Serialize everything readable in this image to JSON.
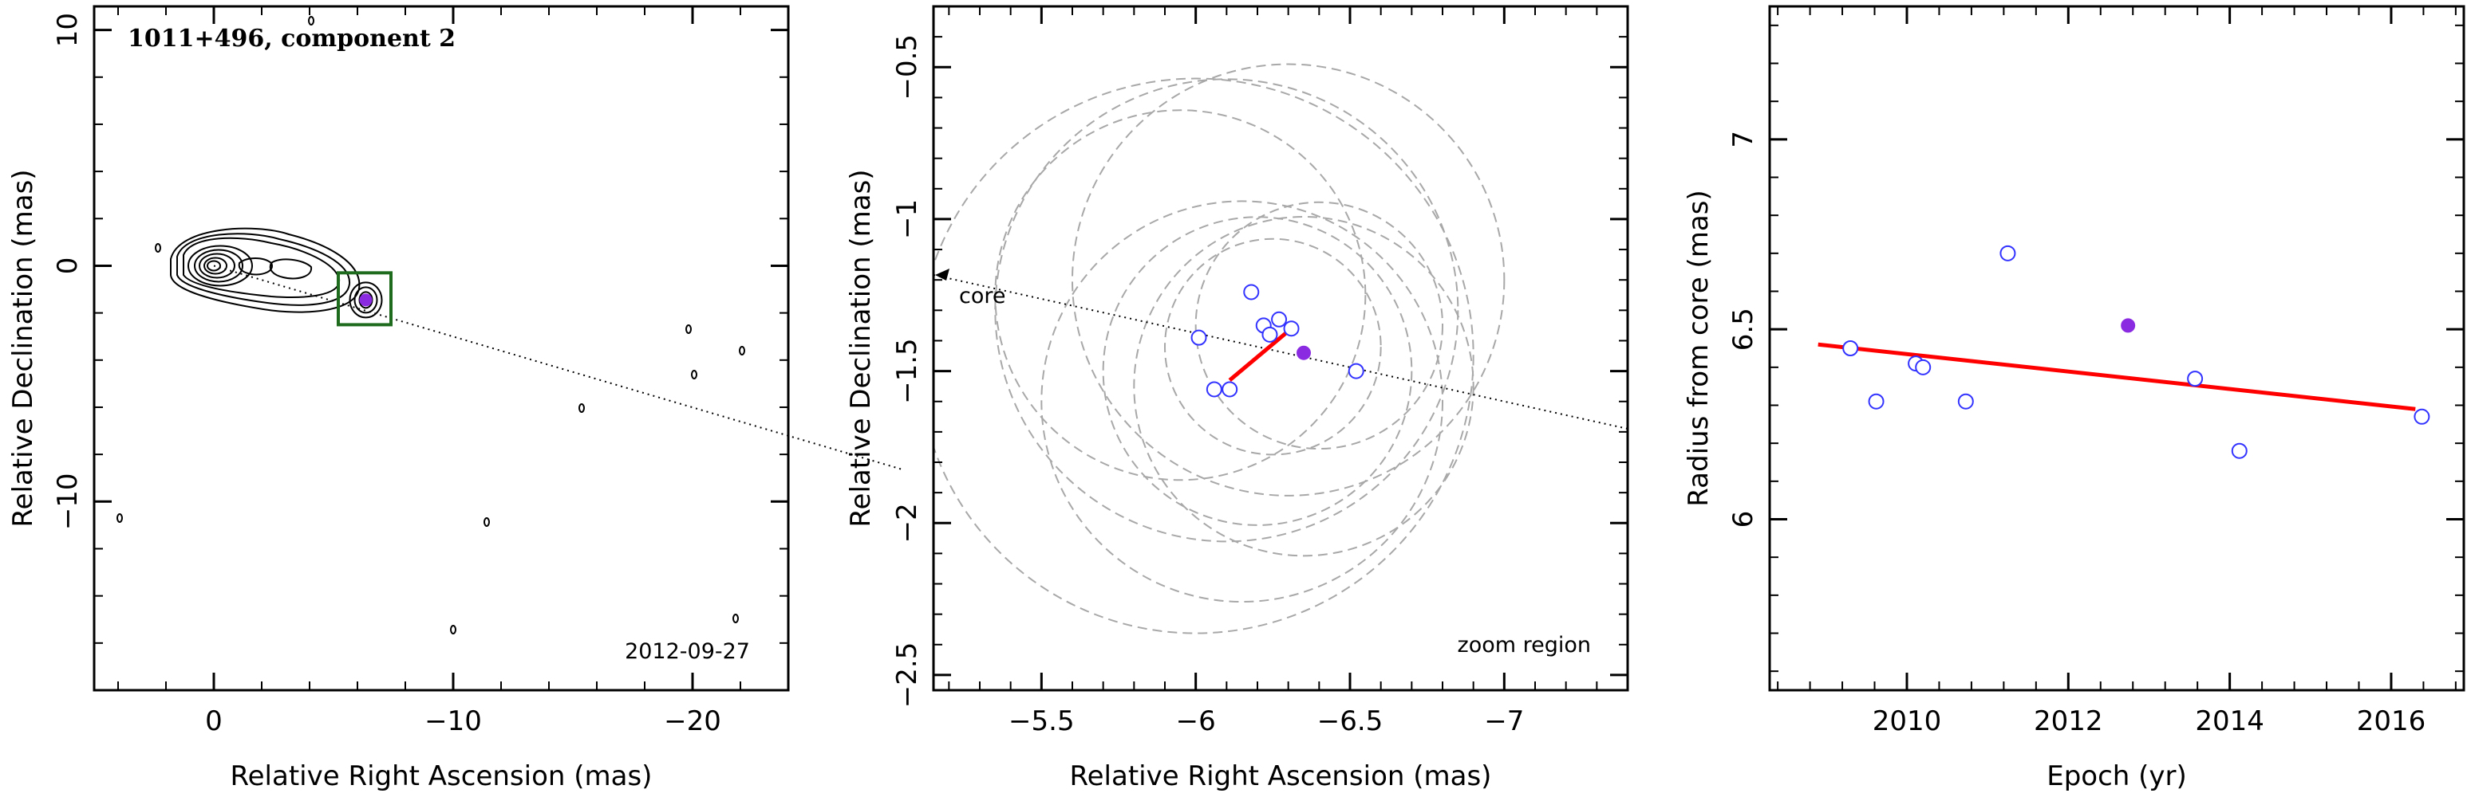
{
  "chart_data": [
    {
      "type": "contour",
      "title": "1011+496, component 2",
      "xlabel": "Relative Right Ascension (mas)",
      "ylabel": "Relative Declination (mas)",
      "xlim": [
        5,
        -24
      ],
      "ylim": [
        -18,
        11
      ],
      "xticks": [
        0,
        -10,
        -20
      ],
      "xtick_labels": [
        "0",
        "−10",
        "−20"
      ],
      "yticks": [
        10,
        0,
        -10
      ],
      "ytick_labels": [
        "10",
        "0",
        "−10"
      ],
      "annotation": "2012-09-27",
      "component": {
        "x": -6.35,
        "y": -1.45
      },
      "zoom_box": {
        "x_range": [
          -5.2,
          -7.4
        ],
        "y_range": [
          -0.3,
          -2.5
        ]
      },
      "jet_direction": {
        "from": [
          0,
          0
        ],
        "angle_deg": -16.5
      },
      "colors": {
        "contour": "#000000",
        "box": "#1e6b1e",
        "component": "#8a2be2"
      }
    },
    {
      "type": "scatter",
      "xlabel": "Relative Right Ascension (mas)",
      "ylabel": "Relative Declination (mas)",
      "xlim": [
        -5.15,
        -7.4
      ],
      "ylim": [
        -2.55,
        -0.3
      ],
      "xticks": [
        -5.5,
        -6,
        -6.5,
        -7
      ],
      "xtick_labels": [
        "−5.5",
        "−6",
        "−6.5",
        "−7"
      ],
      "yticks": [
        -0.5,
        -1,
        -1.5,
        -2,
        -2.5
      ],
      "ytick_labels": [
        "−0.5",
        "−1",
        "−1.5",
        "−2",
        "−2.5"
      ],
      "annotation": "zoom region",
      "core_label": "core",
      "points": [
        {
          "x": -6.01,
          "y": -1.39
        },
        {
          "x": -6.18,
          "y": -1.24
        },
        {
          "x": -6.22,
          "y": -1.35
        },
        {
          "x": -6.24,
          "y": -1.38
        },
        {
          "x": -6.27,
          "y": -1.33
        },
        {
          "x": -6.31,
          "y": -1.36
        },
        {
          "x": -6.06,
          "y": -1.56
        },
        {
          "x": -6.11,
          "y": -1.56
        },
        {
          "x": -6.52,
          "y": -1.5
        }
      ],
      "highlight_point": {
        "x": -6.35,
        "y": -1.44
      },
      "motion_vector": {
        "from": [
          -6.11,
          -1.53
        ],
        "to": [
          -6.31,
          -1.36
        ]
      },
      "error_circles": [
        {
          "cx": -6.1,
          "cy": -1.3,
          "r": 0.75
        },
        {
          "cx": -6.3,
          "cy": -1.2,
          "r": 0.7
        },
        {
          "cx": -6.0,
          "cy": -1.45,
          "r": 0.9
        },
        {
          "cx": -6.2,
          "cy": -1.5,
          "r": 0.5
        },
        {
          "cx": -6.4,
          "cy": -1.35,
          "r": 0.4
        },
        {
          "cx": -6.25,
          "cy": -1.42,
          "r": 0.35
        },
        {
          "cx": -6.15,
          "cy": -1.6,
          "r": 0.65
        },
        {
          "cx": -5.95,
          "cy": -1.25,
          "r": 0.6
        },
        {
          "cx": -6.35,
          "cy": -1.55,
          "r": 0.55
        }
      ],
      "jet_direction": {
        "angle_deg": -16.5
      },
      "colors": {
        "points": "#3333ff",
        "highlight": "#8a2be2",
        "vector": "#ff0000",
        "circles": "#a8a8a8"
      }
    },
    {
      "type": "scatter",
      "xlabel": "Epoch (yr)",
      "ylabel": "Radius from core (mas)",
      "xlim": [
        2008.3,
        2016.9
      ],
      "ylim": [
        5.55,
        7.35
      ],
      "xticks": [
        2010,
        2012,
        2014,
        2016
      ],
      "xtick_labels": [
        "2010",
        "2012",
        "2014",
        "2016"
      ],
      "yticks": [
        6,
        6.5,
        7
      ],
      "ytick_labels": [
        "6",
        "6.5",
        "7"
      ],
      "points": [
        {
          "x": 2009.3,
          "y": 6.45
        },
        {
          "x": 2009.62,
          "y": 6.31
        },
        {
          "x": 2010.11,
          "y": 6.41
        },
        {
          "x": 2010.2,
          "y": 6.4
        },
        {
          "x": 2010.73,
          "y": 6.31
        },
        {
          "x": 2011.25,
          "y": 6.7
        },
        {
          "x": 2013.57,
          "y": 6.37
        },
        {
          "x": 2014.12,
          "y": 6.18
        },
        {
          "x": 2016.38,
          "y": 6.27
        }
      ],
      "highlight_point": {
        "x": 2012.74,
        "y": 6.51
      },
      "fit_line": {
        "x": [
          2008.9,
          2016.3
        ],
        "y": [
          6.46,
          6.29
        ]
      },
      "colors": {
        "points": "#3333ff",
        "highlight": "#8a2be2",
        "fit": "#ff0000"
      }
    }
  ]
}
